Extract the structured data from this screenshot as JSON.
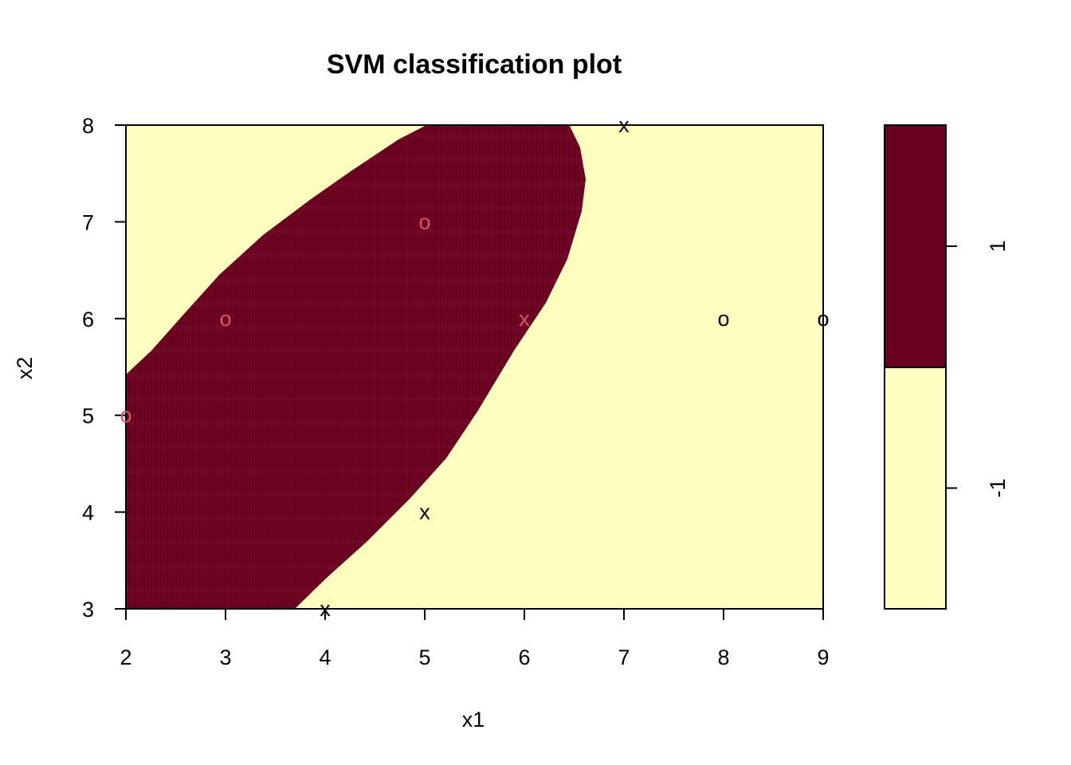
{
  "chart_data": {
    "type": "scatter",
    "title": "SVM classification plot",
    "xlabel": "x1",
    "ylabel": "x2",
    "xlim": [
      2,
      9
    ],
    "ylim": [
      3,
      8
    ],
    "x_ticks": [
      "2",
      "3",
      "4",
      "5",
      "6",
      "7",
      "8",
      "9"
    ],
    "y_ticks": [
      "3",
      "4",
      "5",
      "6",
      "7",
      "8"
    ],
    "x_tick_values": [
      2,
      3,
      4,
      5,
      6,
      7,
      8,
      9
    ],
    "y_tick_values": [
      3,
      4,
      5,
      6,
      7,
      8
    ],
    "decision_regions": [
      {
        "class": "1",
        "color": "#67001F"
      },
      {
        "class": "-1",
        "color": "#FFFFBF"
      }
    ],
    "legend": {
      "position": "right",
      "labels": [
        "1",
        "-1"
      ],
      "colors": [
        "#67001F",
        "#FFFFBF"
      ]
    },
    "points": [
      {
        "x": 7,
        "y": 8,
        "symbol": "x",
        "color": "#000000"
      },
      {
        "x": 5,
        "y": 7,
        "symbol": "o",
        "color": "#DF536B"
      },
      {
        "x": 3,
        "y": 6,
        "symbol": "o",
        "color": "#DF536B"
      },
      {
        "x": 6,
        "y": 6,
        "symbol": "x",
        "color": "#DF536B"
      },
      {
        "x": 8,
        "y": 6,
        "symbol": "o",
        "color": "#000000"
      },
      {
        "x": 9,
        "y": 6,
        "symbol": "o",
        "color": "#000000"
      },
      {
        "x": 2,
        "y": 5,
        "symbol": "o",
        "color": "#DF536B"
      },
      {
        "x": 5,
        "y": 4,
        "symbol": "x",
        "color": "#000000"
      },
      {
        "x": 4,
        "y": 3,
        "symbol": "x",
        "color": "#000000"
      }
    ]
  }
}
